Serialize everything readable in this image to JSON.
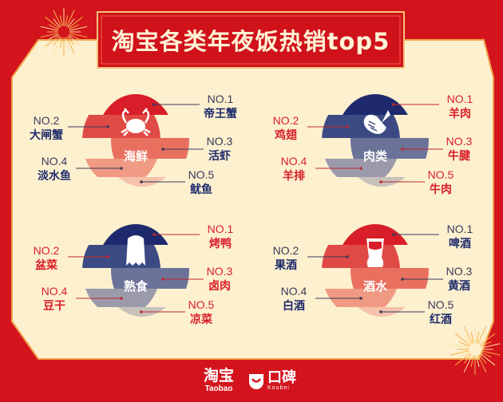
{
  "title": "淘宝各类年夜饭热销top5",
  "colors": {
    "background": "#d3141d",
    "panel": "#fdf0cf",
    "red": "#d81e28",
    "navy": "#1f2a6e"
  },
  "sections": [
    {
      "category": "海鲜",
      "icon": "crab-icon",
      "theme": "red",
      "bands": [
        "#d81e28",
        "#e04a45",
        "#e9705f",
        "#f09a83",
        "#f6c2ac"
      ],
      "text_color": "#1e2a6b",
      "items": [
        {
          "rank": "NO.1",
          "name": "帝王蟹"
        },
        {
          "rank": "NO.2",
          "name": "大闸蟹"
        },
        {
          "rank": "NO.3",
          "name": "活虾"
        },
        {
          "rank": "NO.4",
          "name": "淡水鱼"
        },
        {
          "rank": "NO.5",
          "name": "鱿鱼"
        }
      ]
    },
    {
      "category": "肉类",
      "icon": "drumstick-icon",
      "theme": "navy",
      "bands": [
        "#1f2a6e",
        "#3c4a84",
        "#6b7399",
        "#9a9aab",
        "#c7c2bc"
      ],
      "text_color": "#d81e28",
      "items": [
        {
          "rank": "NO.1",
          "name": "羊肉"
        },
        {
          "rank": "NO.2",
          "name": "鸡翅"
        },
        {
          "rank": "NO.3",
          "name": "牛腱"
        },
        {
          "rank": "NO.4",
          "name": "羊排"
        },
        {
          "rank": "NO.5",
          "name": "牛肉"
        }
      ]
    },
    {
      "category": "熟食",
      "icon": "roast-duck-icon",
      "theme": "navy",
      "bands": [
        "#1f2a6e",
        "#3c4a84",
        "#6b7399",
        "#9a9aab",
        "#c7c2bc"
      ],
      "text_color": "#d81e28",
      "items": [
        {
          "rank": "NO.1",
          "name": "烤鸭"
        },
        {
          "rank": "NO.2",
          "name": "盆菜"
        },
        {
          "rank": "NO.3",
          "name": "卤肉"
        },
        {
          "rank": "NO.4",
          "name": "豆干"
        },
        {
          "rank": "NO.5",
          "name": "凉菜"
        }
      ]
    },
    {
      "category": "酒水",
      "icon": "beer-glass-icon",
      "theme": "red",
      "bands": [
        "#d81e28",
        "#e04a45",
        "#e9705f",
        "#f09a83",
        "#f6c2ac"
      ],
      "text_color": "#1e2a6b",
      "items": [
        {
          "rank": "NO.1",
          "name": "啤酒"
        },
        {
          "rank": "NO.2",
          "name": "果酒"
        },
        {
          "rank": "NO.3",
          "name": "黄酒"
        },
        {
          "rank": "NO.4",
          "name": "白酒"
        },
        {
          "rank": "NO.5",
          "name": "红酒"
        }
      ]
    }
  ],
  "footer": {
    "taobao_cn": "淘宝",
    "taobao_en": "Taobao",
    "koubei_cn": "口碑",
    "koubei_en": "Koubei"
  }
}
